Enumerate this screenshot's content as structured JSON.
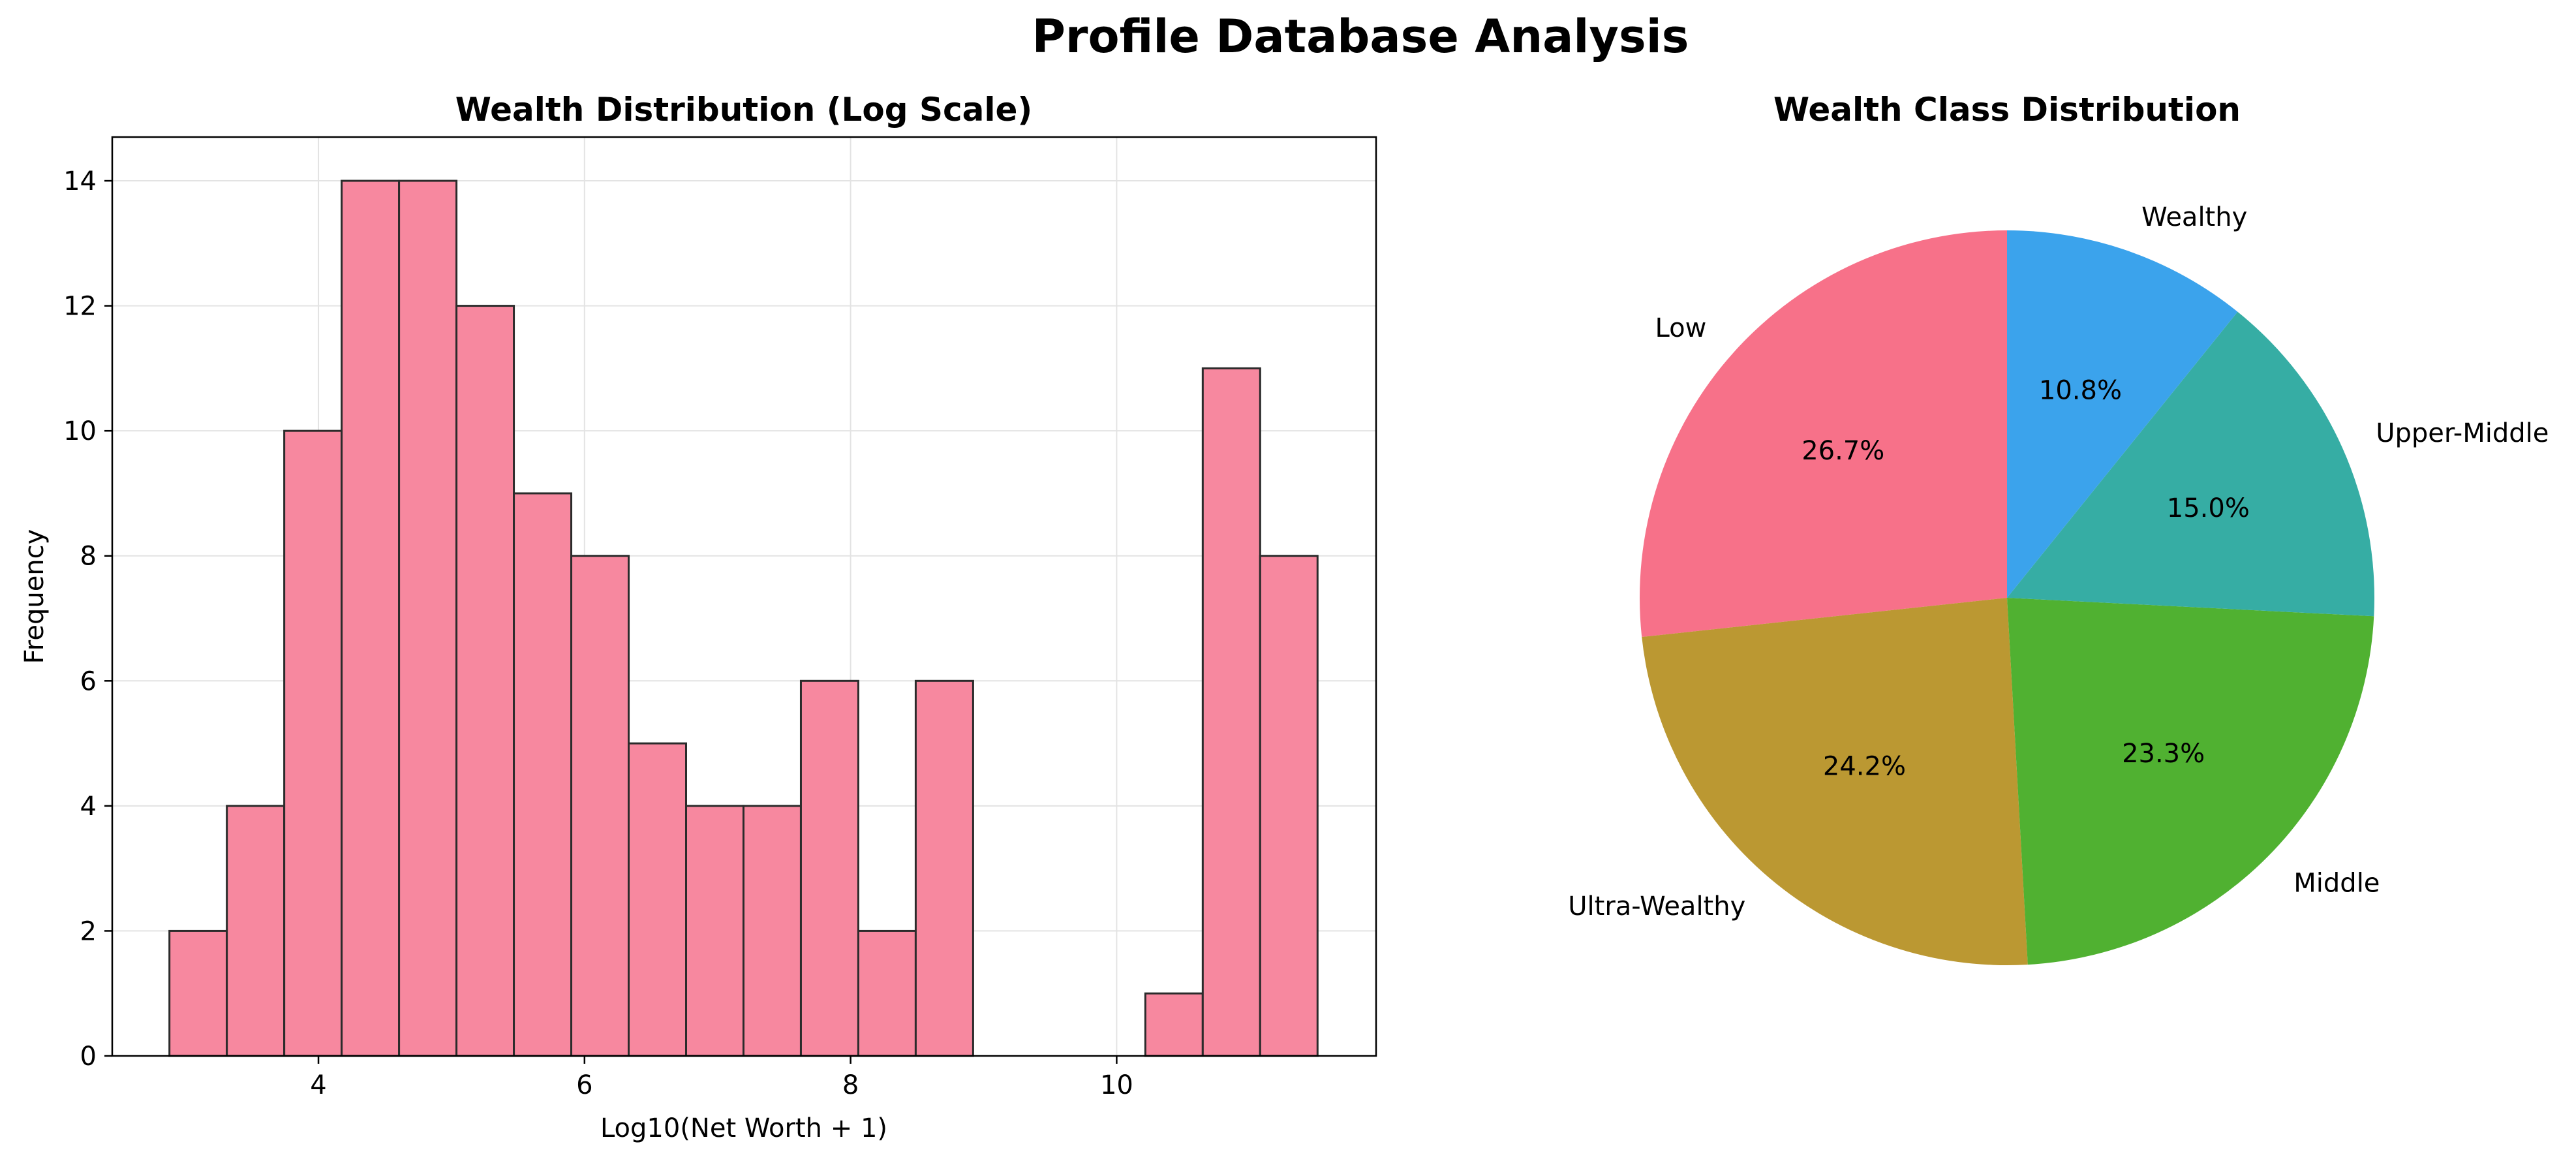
{
  "figure": {
    "title": "Profile Database Analysis"
  },
  "chart_data": [
    {
      "type": "bar",
      "subtype": "histogram",
      "title": "Wealth Distribution (Log Scale)",
      "xlabel": "Log10(Net Worth + 1)",
      "ylabel": "Frequency",
      "xlim": [
        2.45,
        11.95
      ],
      "ylim": [
        0,
        14.7
      ],
      "xticks": [
        4,
        6,
        8,
        10
      ],
      "yticks": [
        0,
        2,
        4,
        6,
        8,
        10,
        12,
        14
      ],
      "grid": true,
      "bin_start": 2.88,
      "bin_width": 0.4315,
      "counts": [
        2,
        4,
        10,
        14,
        14,
        12,
        9,
        8,
        5,
        4,
        4,
        6,
        2,
        6,
        0,
        0,
        0,
        1,
        11,
        8
      ],
      "colors": {
        "bar_fill": "#f7889f",
        "bar_edge": "#2b2b2b",
        "grid": "#e3e3e3"
      }
    },
    {
      "type": "pie",
      "title": "Wealth Class Distribution",
      "start_angle": 90,
      "counterclock": true,
      "slices": [
        {
          "label": "Low",
          "value": 26.7,
          "pct_label": "26.7%",
          "color": "#f77189"
        },
        {
          "label": "Ultra-Wealthy",
          "value": 24.2,
          "pct_label": "24.2%",
          "color": "#bb9832"
        },
        {
          "label": "Middle",
          "value": 23.3,
          "pct_label": "23.3%",
          "color": "#50b131"
        },
        {
          "label": "Upper-Middle",
          "value": 15.0,
          "pct_label": "15.0%",
          "color": "#36ada4"
        },
        {
          "label": "Wealthy",
          "value": 10.8,
          "pct_label": "10.8%",
          "color": "#3ba3ec"
        }
      ]
    }
  ]
}
